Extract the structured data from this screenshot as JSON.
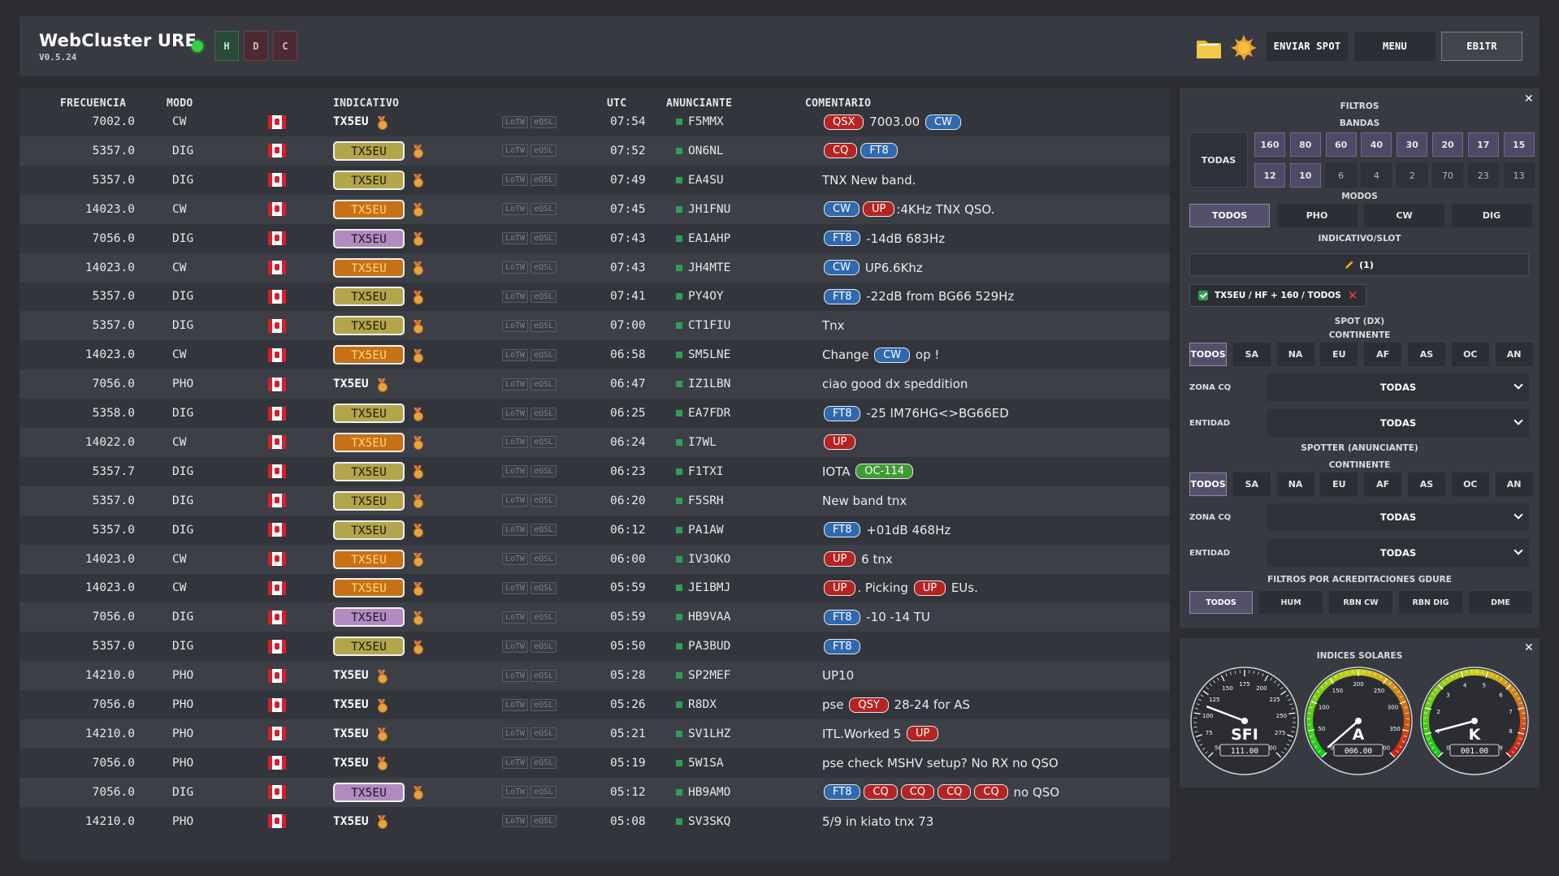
{
  "header": {
    "title": "WebCluster URE",
    "version": "V0.5.24",
    "hdc": [
      "H",
      "D",
      "C"
    ],
    "enviar_label": "ENVIAR SPOT",
    "menu_label": "MENU",
    "user_label": "EB1TR"
  },
  "table": {
    "headers": {
      "freq": "FRECUENCIA",
      "mode": "MODO",
      "call": "INDICATIVO",
      "utc": "UTC",
      "spotter": "ANUNCIANTE",
      "comment": "COMENTARIO"
    },
    "lotw": "LoTW",
    "eqsl": "eQSL",
    "rows": [
      {
        "freq": "7002.0",
        "mode": "CW",
        "call": "TX5EU",
        "style": "plain",
        "utc": "07:54",
        "spotter": "F5MMX",
        "comment": [
          {
            "p": "red",
            "t": "QSX"
          },
          {
            "t": " 7003.00 "
          },
          {
            "p": "blue",
            "t": "CW"
          }
        ]
      },
      {
        "freq": "5357.0",
        "mode": "DIG",
        "call": "TX5EU",
        "style": "olive",
        "utc": "07:52",
        "spotter": "ON6NL",
        "comment": [
          {
            "p": "red",
            "t": "CQ"
          },
          {
            "p": "blue",
            "t": "FT8"
          }
        ]
      },
      {
        "freq": "5357.0",
        "mode": "DIG",
        "call": "TX5EU",
        "style": "olive",
        "utc": "07:49",
        "spotter": "EA4SU",
        "comment": [
          {
            "t": "TNX New band."
          }
        ]
      },
      {
        "freq": "14023.0",
        "mode": "CW",
        "call": "TX5EU",
        "style": "orange",
        "utc": "07:45",
        "spotter": "JH1FNU",
        "comment": [
          {
            "p": "blue",
            "t": "CW"
          },
          {
            "p": "red",
            "t": "UP"
          },
          {
            "t": ":4KHz TNX QSO."
          }
        ]
      },
      {
        "freq": "7056.0",
        "mode": "DIG",
        "call": "TX5EU",
        "style": "purple",
        "utc": "07:43",
        "spotter": "EA1AHP",
        "comment": [
          {
            "p": "blue",
            "t": "FT8"
          },
          {
            "t": " -14dB 683Hz"
          }
        ]
      },
      {
        "freq": "14023.0",
        "mode": "CW",
        "call": "TX5EU",
        "style": "orange",
        "utc": "07:43",
        "spotter": "JH4MTE",
        "comment": [
          {
            "p": "blue",
            "t": "CW"
          },
          {
            "t": " UP6.6Khz"
          }
        ]
      },
      {
        "freq": "5357.0",
        "mode": "DIG",
        "call": "TX5EU",
        "style": "olive",
        "utc": "07:41",
        "spotter": "PY4OY",
        "comment": [
          {
            "p": "blue",
            "t": "FT8"
          },
          {
            "t": " -22dB from BG66 529Hz"
          }
        ]
      },
      {
        "freq": "5357.0",
        "mode": "DIG",
        "call": "TX5EU",
        "style": "olive",
        "utc": "07:00",
        "spotter": "CT1FIU",
        "comment": [
          {
            "t": "Tnx"
          }
        ]
      },
      {
        "freq": "14023.0",
        "mode": "CW",
        "call": "TX5EU",
        "style": "orange",
        "utc": "06:58",
        "spotter": "SM5LNE",
        "comment": [
          {
            "t": "Change "
          },
          {
            "p": "blue",
            "t": "CW"
          },
          {
            "t": " op !"
          }
        ]
      },
      {
        "freq": "7056.0",
        "mode": "PHO",
        "call": "TX5EU",
        "style": "plain",
        "utc": "06:47",
        "spotter": "IZ1LBN",
        "comment": [
          {
            "t": "ciao good dx speddition"
          }
        ]
      },
      {
        "freq": "5358.0",
        "mode": "DIG",
        "call": "TX5EU",
        "style": "olive",
        "utc": "06:25",
        "spotter": "EA7FDR",
        "comment": [
          {
            "p": "blue",
            "t": "FT8"
          },
          {
            "t": " -25 IM76HG<>BG66ED"
          }
        ]
      },
      {
        "freq": "14022.0",
        "mode": "CW",
        "call": "TX5EU",
        "style": "orange",
        "utc": "06:24",
        "spotter": "I7WL",
        "comment": [
          {
            "p": "red",
            "t": "UP"
          }
        ]
      },
      {
        "freq": "5357.7",
        "mode": "DIG",
        "call": "TX5EU",
        "style": "olive",
        "utc": "06:23",
        "spotter": "F1TXI",
        "comment": [
          {
            "t": "IOTA "
          },
          {
            "p": "green",
            "t": "OC-114"
          }
        ]
      },
      {
        "freq": "5357.0",
        "mode": "DIG",
        "call": "TX5EU",
        "style": "olive",
        "utc": "06:20",
        "spotter": "F5SRH",
        "comment": [
          {
            "t": "New band tnx"
          }
        ]
      },
      {
        "freq": "5357.0",
        "mode": "DIG",
        "call": "TX5EU",
        "style": "olive",
        "utc": "06:12",
        "spotter": "PA1AW",
        "comment": [
          {
            "p": "blue",
            "t": "FT8"
          },
          {
            "t": " +01dB 468Hz"
          }
        ]
      },
      {
        "freq": "14023.0",
        "mode": "CW",
        "call": "TX5EU",
        "style": "orange",
        "utc": "06:00",
        "spotter": "IV3OKO",
        "comment": [
          {
            "p": "red",
            "t": "UP"
          },
          {
            "t": " 6 tnx"
          }
        ]
      },
      {
        "freq": "14023.0",
        "mode": "CW",
        "call": "TX5EU",
        "style": "orange",
        "utc": "05:59",
        "spotter": "JE1BMJ",
        "comment": [
          {
            "p": "red",
            "t": "UP"
          },
          {
            "t": ". Picking "
          },
          {
            "p": "red",
            "t": "UP"
          },
          {
            "t": " EUs."
          }
        ]
      },
      {
        "freq": "7056.0",
        "mode": "DIG",
        "call": "TX5EU",
        "style": "purple",
        "utc": "05:59",
        "spotter": "HB9VAA",
        "comment": [
          {
            "p": "blue",
            "t": "FT8"
          },
          {
            "t": " -10 -14 TU"
          }
        ]
      },
      {
        "freq": "5357.0",
        "mode": "DIG",
        "call": "TX5EU",
        "style": "olive",
        "utc": "05:50",
        "spotter": "PA3BUD",
        "comment": [
          {
            "p": "blue",
            "t": "FT8"
          }
        ]
      },
      {
        "freq": "14210.0",
        "mode": "PHO",
        "call": "TX5EU",
        "style": "plain",
        "utc": "05:28",
        "spotter": "SP2MEF",
        "comment": [
          {
            "t": "UP10"
          }
        ]
      },
      {
        "freq": "7056.0",
        "mode": "PHO",
        "call": "TX5EU",
        "style": "plain",
        "utc": "05:26",
        "spotter": "R8DX",
        "comment": [
          {
            "t": "pse "
          },
          {
            "p": "red",
            "t": "QSY"
          },
          {
            "t": " 28-24 for AS"
          }
        ]
      },
      {
        "freq": "14210.0",
        "mode": "PHO",
        "call": "TX5EU",
        "style": "plain",
        "utc": "05:21",
        "spotter": "SV1LHZ",
        "comment": [
          {
            "t": "ITL.Worked 5 "
          },
          {
            "p": "red",
            "t": "UP"
          }
        ]
      },
      {
        "freq": "7056.0",
        "mode": "PHO",
        "call": "TX5EU",
        "style": "plain",
        "utc": "05:19",
        "spotter": "5W1SA",
        "comment": [
          {
            "t": "pse check MSHV setup? No RX no QSO"
          }
        ]
      },
      {
        "freq": "7056.0",
        "mode": "DIG",
        "call": "TX5EU",
        "style": "purple",
        "utc": "05:12",
        "spotter": "HB9AMO",
        "comment": [
          {
            "p": "blue",
            "t": "FT8"
          },
          {
            "p": "red",
            "t": "CQ"
          },
          {
            "p": "red",
            "t": "CQ"
          },
          {
            "p": "red",
            "t": "CQ"
          },
          {
            "p": "red",
            "t": "CQ"
          },
          {
            "t": " no QSO"
          }
        ]
      },
      {
        "freq": "14210.0",
        "mode": "PHO",
        "call": "TX5EU",
        "style": "plain",
        "utc": "05:08",
        "spotter": "SV3SKQ",
        "comment": [
          {
            "t": "5/9 in kiato tnx 73"
          }
        ]
      }
    ]
  },
  "filters": {
    "title": "FILTROS",
    "bands_title": "BANDAS",
    "bands_all": "TODAS",
    "bands_row1": [
      "160",
      "80",
      "60",
      "40",
      "30",
      "20",
      "17",
      "15"
    ],
    "bands_row2": [
      "12",
      "10",
      "6",
      "4",
      "2",
      "70",
      "23",
      "13"
    ],
    "bands_active": [
      "160",
      "80",
      "60",
      "40",
      "30",
      "20",
      "17",
      "15",
      "12",
      "10"
    ],
    "modes_title": "MODOS",
    "modes": [
      "TODOS",
      "PHO",
      "CW",
      "DIG"
    ],
    "slot_title": "INDICATIVO/SLOT",
    "slot_count": "(1)",
    "slot_chip": "TX5EU / HF + 160 / TODOS",
    "spot_dx_title": "SPOT (DX)",
    "continent_title": "CONTINENTE",
    "continents": [
      "TODOS",
      "SA",
      "NA",
      "EU",
      "AF",
      "AS",
      "OC",
      "AN"
    ],
    "zona_label": "ZONA CQ",
    "zona_value": "TODAS",
    "entidad_label": "ENTIDAD",
    "entidad_value": "TODAS",
    "spotter_title": "SPOTTER (ANUNCIANTE)",
    "accred_title": "FILTROS POR ACREDITACIONES GDURE",
    "accred": [
      "TODOS",
      "HUM",
      "RBN CW",
      "RBN DIG",
      "DME"
    ]
  },
  "solar": {
    "title": "INDICES SOLARES",
    "sfi": {
      "label": "SFI",
      "value": "111.00",
      "num": 111,
      "min": 50,
      "max": 300,
      "ticks": [
        "50",
        "75",
        "100",
        "125",
        "150",
        "175",
        "200",
        "225",
        "250",
        "275",
        "300"
      ]
    },
    "a": {
      "label": "A",
      "value": "006.00",
      "num": 6,
      "min": 0,
      "max": 400,
      "ticks": [
        "0",
        "50",
        "100",
        "150",
        "200",
        "250",
        "300",
        "350",
        "400"
      ]
    },
    "k": {
      "label": "K",
      "value": "001.00",
      "num": 1,
      "min": 0,
      "max": 9,
      "ticks": [
        "0",
        "1",
        "2",
        "3",
        "4",
        "5",
        "6",
        "7",
        "8",
        "9"
      ]
    }
  },
  "colors": {
    "status": "#2fd33b",
    "olive": "#b3a54a",
    "orange": "#c77016",
    "purple": "#b28ac2",
    "pill_red": "#b52424",
    "pill_blue": "#2f69b0",
    "pill_green": "#3f9a34"
  }
}
